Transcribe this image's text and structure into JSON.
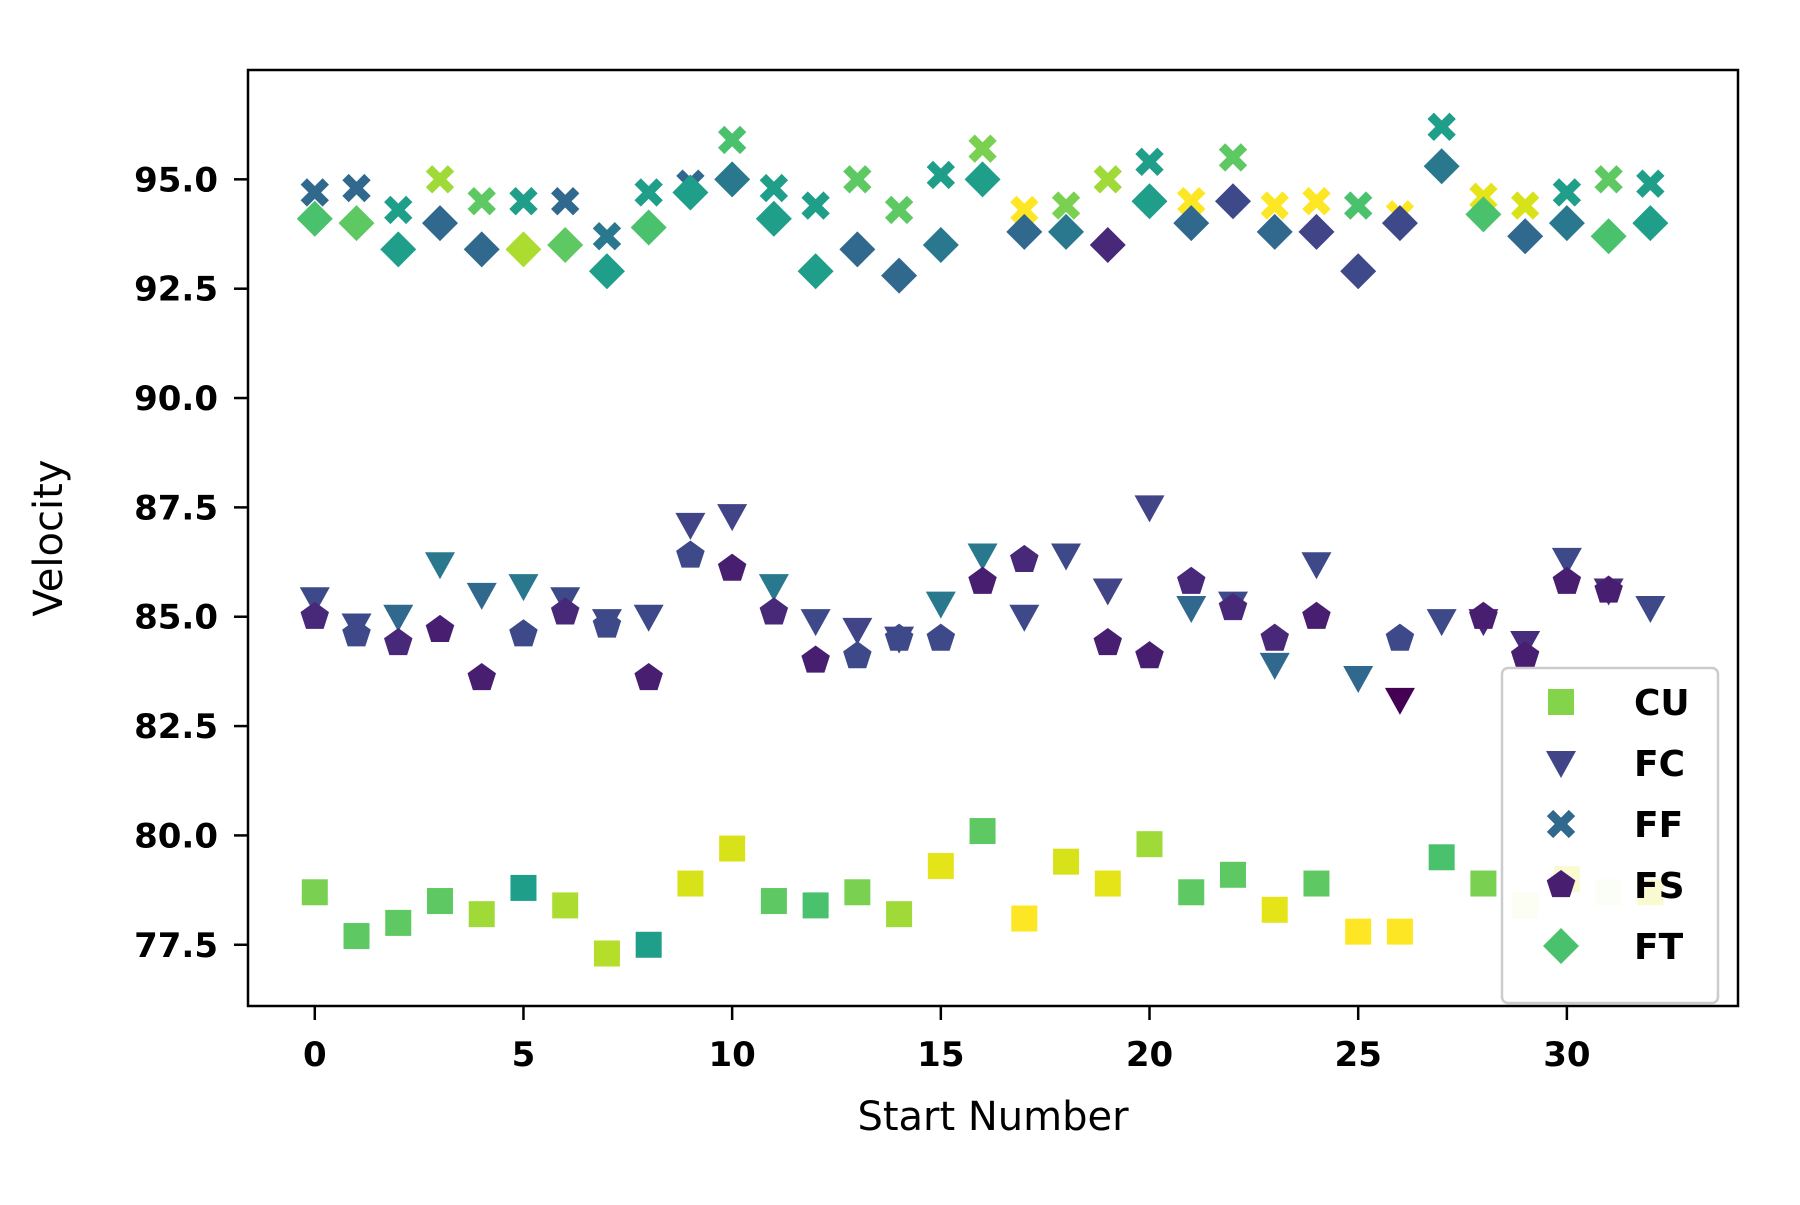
{
  "chart_data": {
    "type": "scatter",
    "title": "",
    "xlabel": "Start Number",
    "ylabel": "Velocity",
    "xlim": [
      -1.6,
      34.1
    ],
    "ylim": [
      76.1,
      97.5
    ],
    "xticks": [
      0,
      5,
      10,
      15,
      20,
      25,
      30
    ],
    "yticks": [
      77.5,
      80.0,
      82.5,
      85.0,
      87.5,
      90.0,
      92.5,
      95.0
    ],
    "x_tick_labels": [
      "0",
      "5",
      "10",
      "15",
      "20",
      "25",
      "30"
    ],
    "y_tick_labels": [
      "77.5",
      "80.0",
      "82.5",
      "85.0",
      "87.5",
      "90.0",
      "92.5",
      "95.0"
    ],
    "grid": false,
    "legend_position": "lower-right",
    "x": [
      0,
      1,
      2,
      3,
      4,
      5,
      6,
      7,
      8,
      9,
      10,
      11,
      12,
      13,
      14,
      15,
      16,
      17,
      18,
      19,
      20,
      21,
      22,
      23,
      24,
      25,
      26,
      27,
      28,
      29,
      30,
      31,
      32
    ],
    "series": [
      {
        "name": "CU",
        "marker": "square",
        "legend_color": "#84d44b",
        "values": [
          78.7,
          77.7,
          78.0,
          78.5,
          78.2,
          78.8,
          78.4,
          77.3,
          77.5,
          78.9,
          79.7,
          78.5,
          78.4,
          78.7,
          78.2,
          79.3,
          80.1,
          78.1,
          79.4,
          78.9,
          79.8,
          78.7,
          79.1,
          78.3,
          78.9,
          77.8,
          77.8,
          79.5,
          78.9,
          78.4,
          79.0,
          78.7,
          78.7
        ],
        "colors": [
          "#7ad151",
          "#5ec962",
          "#5ec962",
          "#5ec962",
          "#a0da39",
          "#1f9e89",
          "#addc30",
          "#b5de2b",
          "#1f9e89",
          "#d8e219",
          "#d8e219",
          "#5ec962",
          "#4ac16d",
          "#7ad151",
          "#a0da39",
          "#e5e419",
          "#5ec962",
          "#fde725",
          "#d8e219",
          "#e5e419",
          "#a0da39",
          "#5ec962",
          "#5ec962",
          "#e5e419",
          "#5ec962",
          "#fde725",
          "#fde725",
          "#4ac16d",
          "#7ad151",
          "#f0f3c4",
          "#e5e419",
          "#eaf2d4",
          "#e5e419"
        ]
      },
      {
        "name": "FC",
        "marker": "triangle-down",
        "legend_color": "#414487",
        "values": [
          85.4,
          84.8,
          85.0,
          86.2,
          85.5,
          85.7,
          85.4,
          84.9,
          85.0,
          87.1,
          87.3,
          85.7,
          84.9,
          84.7,
          84.5,
          85.3,
          86.4,
          85.0,
          86.4,
          85.6,
          87.5,
          85.2,
          85.3,
          83.9,
          86.2,
          83.6,
          83.1,
          84.9,
          84.9,
          84.4,
          86.3,
          85.6,
          85.2
        ],
        "colors": [
          "#3e4989",
          "#3e4989",
          "#31688e",
          "#2a788e",
          "#31688e",
          "#2a788e",
          "#3e4989",
          "#3e4989",
          "#3e4989",
          "#414487",
          "#414487",
          "#2a788e",
          "#3e4989",
          "#414487",
          "#414487",
          "#2a788e",
          "#2a788e",
          "#3e4989",
          "#3e4989",
          "#414487",
          "#414487",
          "#31688e",
          "#3e4989",
          "#31688e",
          "#3e4989",
          "#31688e",
          "#440154",
          "#3e4989",
          "#482878",
          "#472d7b",
          "#3e4989",
          "#472d7b",
          "#3e4989"
        ]
      },
      {
        "name": "FF",
        "marker": "x",
        "legend_color": "#31688e",
        "values": [
          94.7,
          94.8,
          94.3,
          95.0,
          94.5,
          94.5,
          94.5,
          93.7,
          94.7,
          94.9,
          95.9,
          94.8,
          94.4,
          95.0,
          94.3,
          95.1,
          95.7,
          94.3,
          94.4,
          95.0,
          95.4,
          94.5,
          95.5,
          94.4,
          94.5,
          94.4,
          94.2,
          96.2,
          94.6,
          94.4,
          94.7,
          95.0,
          94.9
        ],
        "colors": [
          "#31688e",
          "#31688e",
          "#1f9e89",
          "#a0da39",
          "#5ec962",
          "#1f9e89",
          "#31688e",
          "#2a788e",
          "#1f9e89",
          "#31688e",
          "#4ac16d",
          "#1f9e89",
          "#1f9e89",
          "#5ec962",
          "#5ec962",
          "#1f9e89",
          "#7ad151",
          "#fde725",
          "#7ad151",
          "#a0da39",
          "#1f9e89",
          "#fde725",
          "#5ec962",
          "#fde725",
          "#fde725",
          "#4ac16d",
          "#fde725",
          "#1f9e89",
          "#e5e419",
          "#d8e219",
          "#1f9e89",
          "#5ec962",
          "#1f9e89"
        ]
      },
      {
        "name": "FS",
        "marker": "pentagon",
        "legend_color": "#481f70",
        "values": [
          85.0,
          84.6,
          84.4,
          84.7,
          83.6,
          84.6,
          85.1,
          84.8,
          83.6,
          86.4,
          86.1,
          85.1,
          84.0,
          84.1,
          84.5,
          84.5,
          85.8,
          86.3,
          null,
          84.4,
          84.1,
          85.8,
          85.2,
          84.5,
          85.0,
          null,
          84.5,
          null,
          85.0,
          84.1,
          85.8,
          85.6,
          null
        ],
        "colors": [
          "#482878",
          "#3e4989",
          "#482878",
          "#481f70",
          "#481f70",
          "#3e4989",
          "#482878",
          "#3e4989",
          "#481f70",
          "#3e4989",
          "#481f70",
          "#482878",
          "#481f70",
          "#3e4989",
          "#3e4989",
          "#3e4989",
          "#481f70",
          "#482878",
          "#482878",
          "#481f70",
          "#481f70",
          "#482878",
          "#482878",
          "#482878",
          "#481f70",
          "#482878",
          "#3e4989",
          "#482878",
          "#481f70",
          "#481f70",
          "#481f70",
          "#481f70",
          "#481f70"
        ]
      },
      {
        "name": "FT",
        "marker": "diamond",
        "legend_color": "#4ac16d",
        "values": [
          94.1,
          94.0,
          93.4,
          94.0,
          93.4,
          93.4,
          93.5,
          92.9,
          93.9,
          94.7,
          95.0,
          94.1,
          92.9,
          93.4,
          92.8,
          93.5,
          95.0,
          93.8,
          93.8,
          93.5,
          94.5,
          94.0,
          94.5,
          93.8,
          93.8,
          92.9,
          94.0,
          95.3,
          94.2,
          93.7,
          94.0,
          93.7,
          94.0
        ],
        "colors": [
          "#4ac16d",
          "#5ec962",
          "#1f9e89",
          "#31688e",
          "#31688e",
          "#addc30",
          "#5ec962",
          "#1f9e89",
          "#4ac16d",
          "#1f9e89",
          "#2a788e",
          "#1f9e89",
          "#1f9e89",
          "#31688e",
          "#31688e",
          "#2a788e",
          "#1f9e89",
          "#31688e",
          "#2a788e",
          "#482878",
          "#1f9e89",
          "#31688e",
          "#3e4989",
          "#31688e",
          "#414487",
          "#3e4989",
          "#3e4989",
          "#2a788e",
          "#4ac16d",
          "#31688e",
          "#2a788e",
          "#4ac16d",
          "#1f9e89"
        ]
      }
    ]
  }
}
